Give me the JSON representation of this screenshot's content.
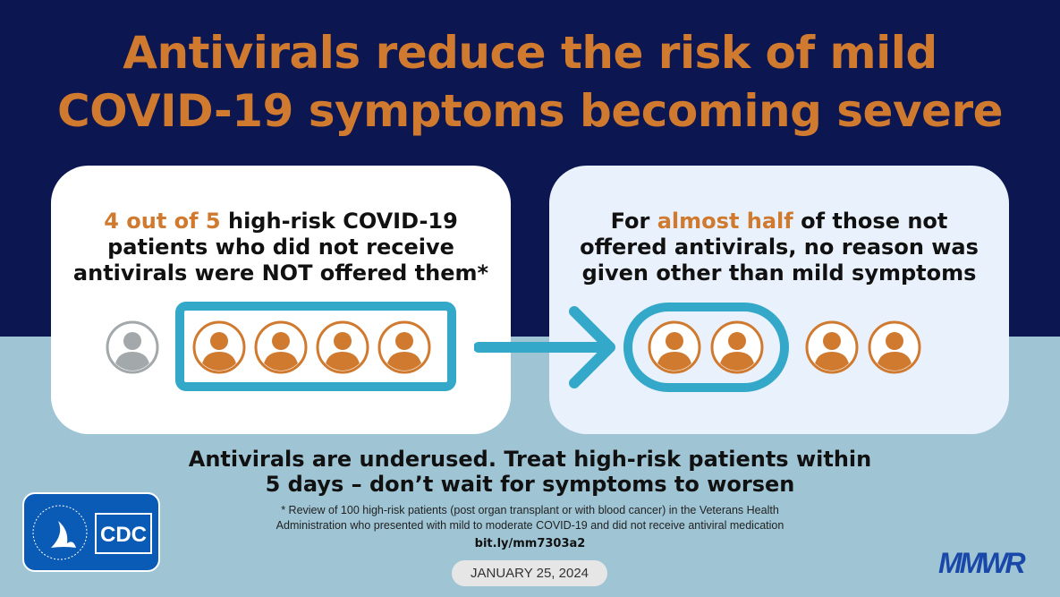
{
  "title": {
    "line1": "Antivirals reduce the risk of mild",
    "line2": "COVID-19 symptoms becoming severe"
  },
  "left_card": {
    "highlight": "4 out of 5",
    "line1_rest": " high-risk COVID-19",
    "line2": "patients who did not receive",
    "line3": "antivirals were NOT offered them*"
  },
  "right_card": {
    "line1_pre": "For ",
    "highlight": "almost half",
    "line1_post": " of those not",
    "line2": "offered antivirals, no reason was",
    "line3": "given other than mild symptoms"
  },
  "bottom": {
    "line1": "Antivirals are underused. Treat high-risk patients within",
    "line2": "5 days – don’t wait for symptoms to worsen",
    "footnote1": "* Review of 100 high-risk patients (post organ transplant or with blood cancer) in the Veterans Health",
    "footnote2": "Administration who presented with mild to moderate COVID-19 and did not receive antiviral medication",
    "link": "bit.ly/mm7303a2",
    "date": "JANUARY 25, 2024"
  },
  "logos": {
    "cdc": "CDC",
    "mmwr": "MMWR"
  },
  "colors": {
    "navy": "#0c1650",
    "orange": "#d07a30",
    "teal": "#33a8c8",
    "gray": "#a3a8aa",
    "light_blue": "#9fc5d5"
  }
}
